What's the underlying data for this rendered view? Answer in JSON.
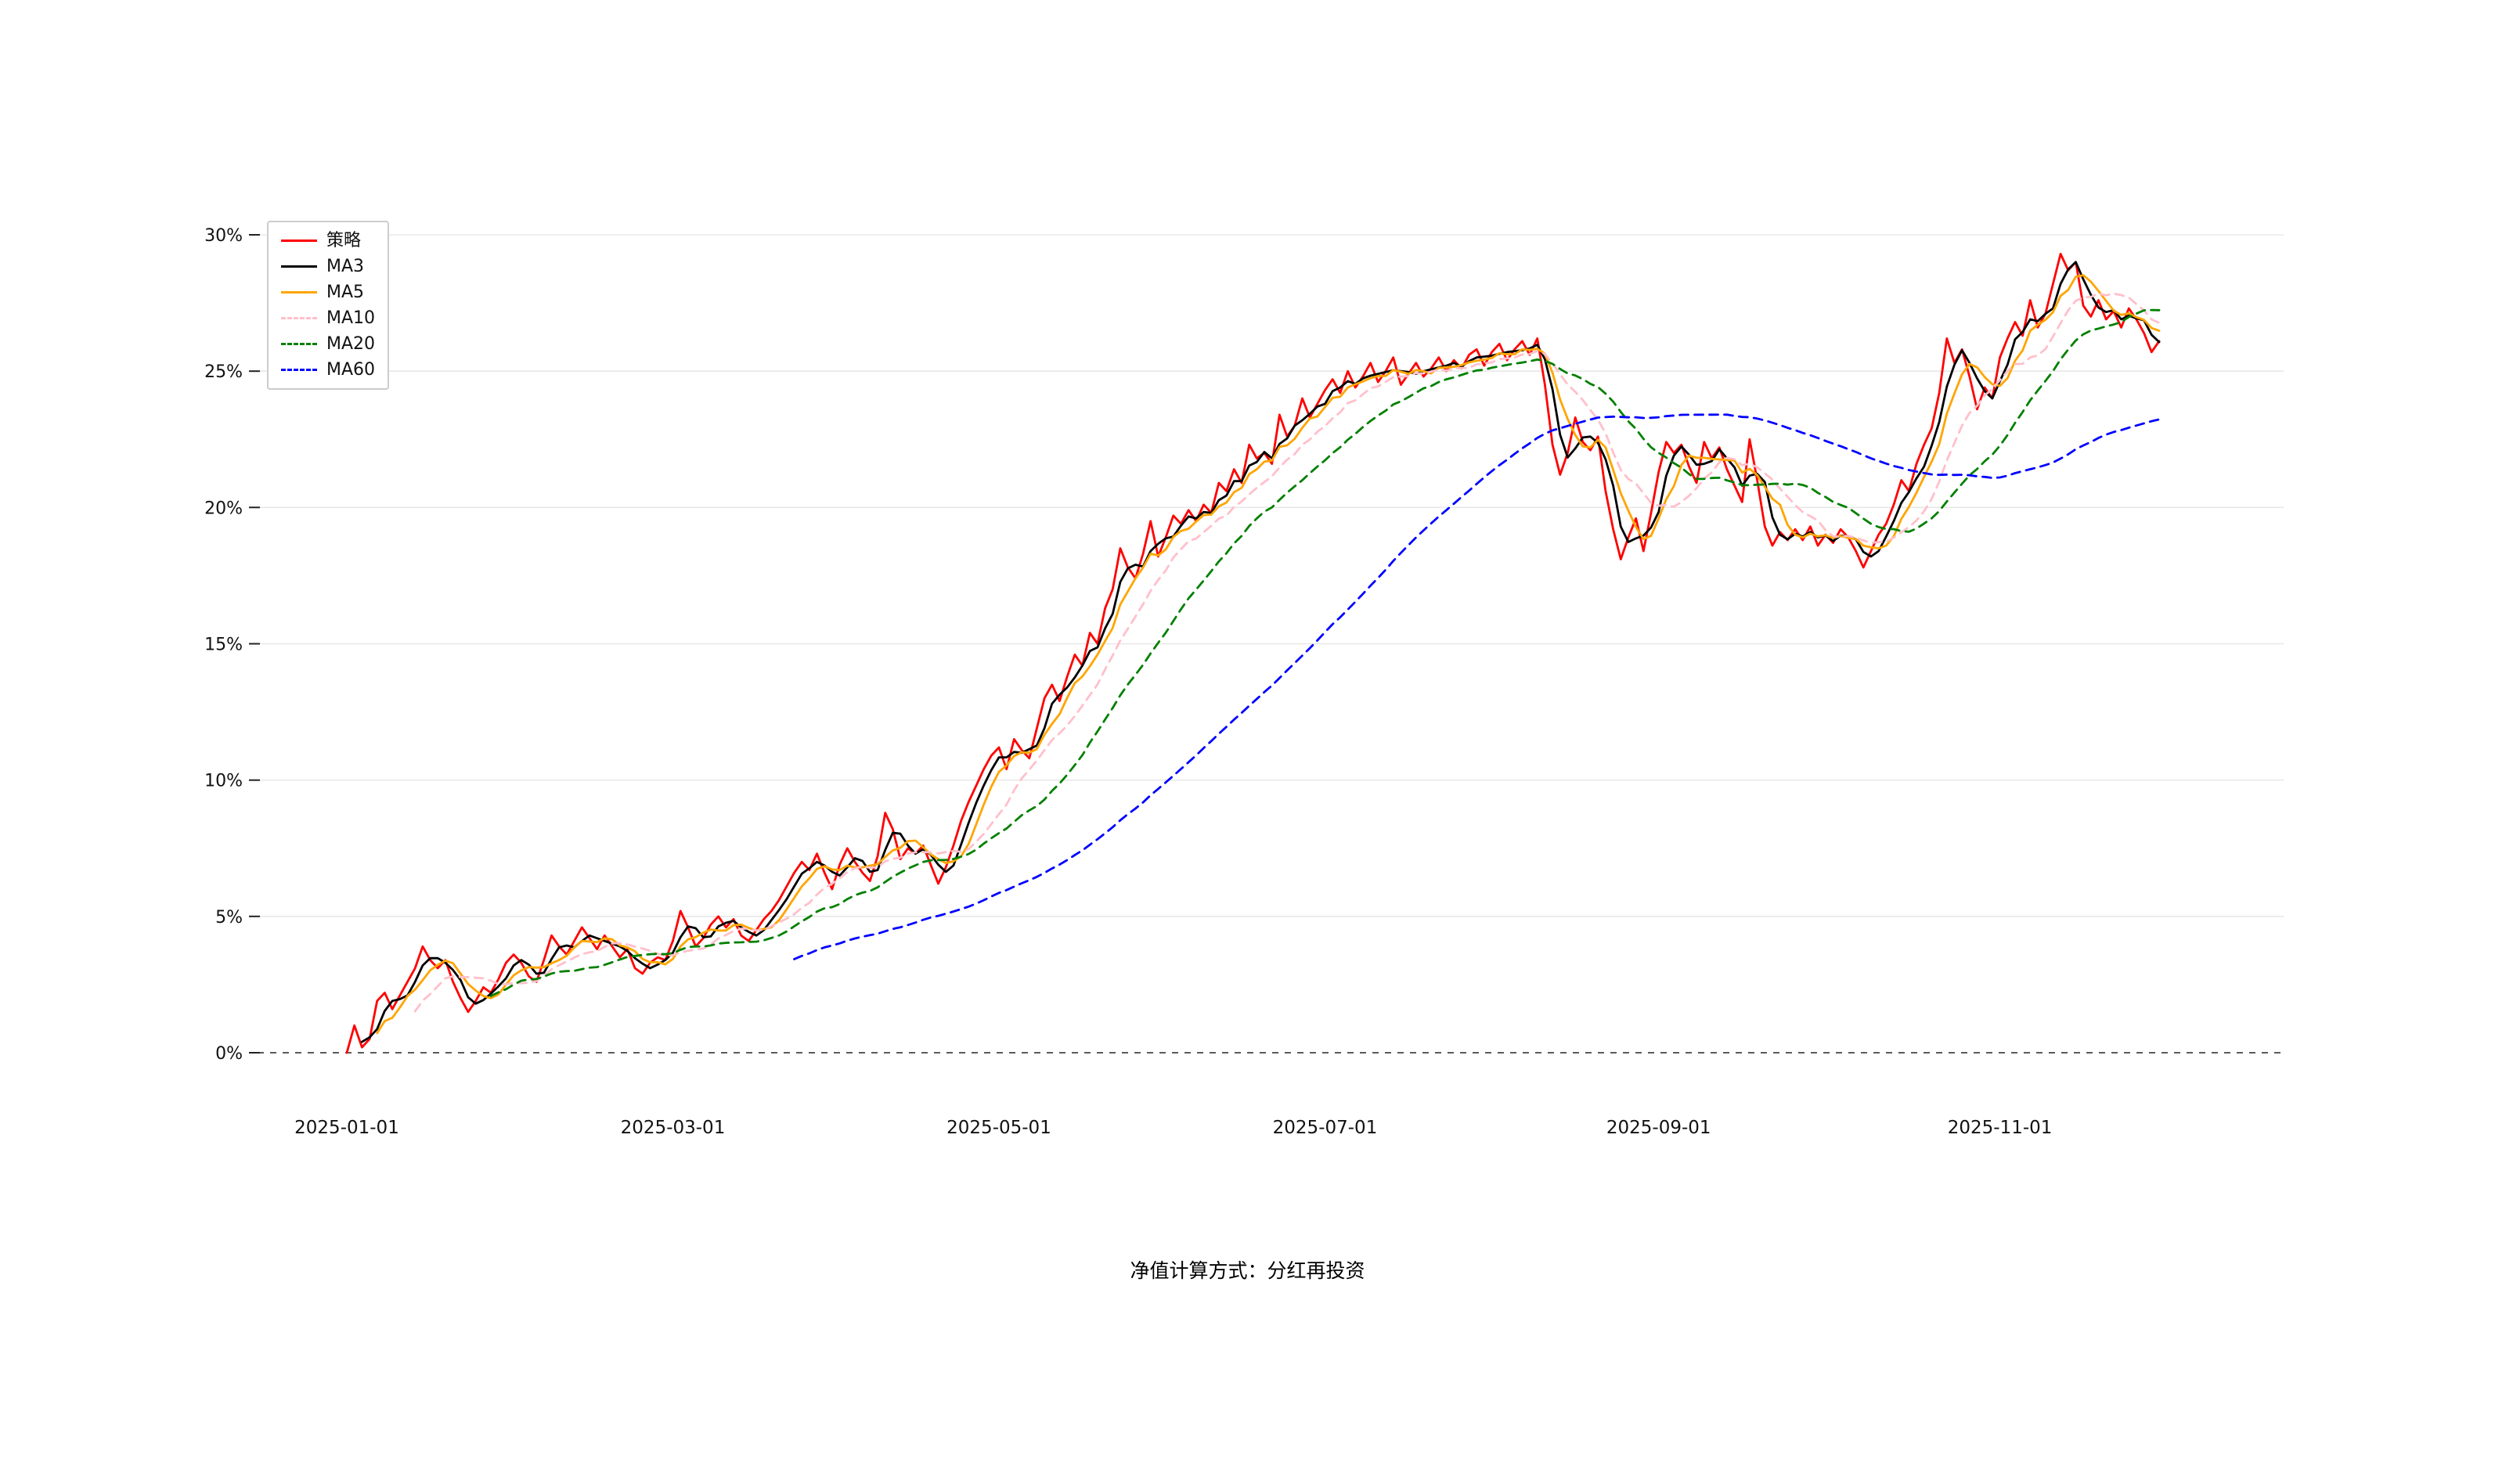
{
  "chart_data": {
    "type": "line",
    "title": "",
    "caption": "净值计算方式：分红再投资",
    "grid": "horizontal-light",
    "legend": {
      "position": "top-left",
      "entries": [
        "策略",
        "MA3",
        "MA5",
        "MA10",
        "MA20",
        "MA60"
      ]
    },
    "x_axis": {
      "label": "",
      "start_date": "2025-01-01",
      "frequency": "trading_days_weekends_skipped",
      "tick_labels": [
        "2025-01-01",
        "2025-03-01",
        "2025-05-01",
        "2025-07-01",
        "2025-09-01",
        "2025-11-01"
      ]
    },
    "y_axis": {
      "label": "",
      "unit": "%",
      "ticks": [
        0,
        5,
        10,
        15,
        20,
        25,
        30
      ],
      "tick_labels": [
        "0%",
        "5%",
        "10%",
        "15%",
        "20%",
        "25%",
        "30%"
      ],
      "range": [
        -1,
        31
      ],
      "zero_line": {
        "style": "dashed",
        "color": "#444444"
      }
    },
    "series": [
      {
        "key": "strategy",
        "name": "策略",
        "color": "#ff0000",
        "style": "solid",
        "source": "values"
      },
      {
        "key": "ma3",
        "name": "MA3",
        "color": "#000000",
        "style": "solid",
        "ma_window": 3
      },
      {
        "key": "ma5",
        "name": "MA5",
        "color": "#ffa500",
        "style": "solid",
        "ma_window": 5
      },
      {
        "key": "ma10",
        "name": "MA10",
        "color": "#ffc0cb",
        "style": "dashed",
        "ma_window": 10
      },
      {
        "key": "ma20",
        "name": "MA20",
        "color": "#008000",
        "style": "dashed",
        "ma_window": 20
      },
      {
        "key": "ma60",
        "name": "MA60",
        "color": "#0000ff",
        "style": "dashed",
        "ma_window": 60
      }
    ],
    "values": [
      0.0,
      1.0,
      0.2,
      0.5,
      1.9,
      2.2,
      1.6,
      2.1,
      2.6,
      3.1,
      3.9,
      3.4,
      3.1,
      3.4,
      2.6,
      2.0,
      1.5,
      1.9,
      2.4,
      2.2,
      2.7,
      3.3,
      3.6,
      3.3,
      2.8,
      2.6,
      3.4,
      4.3,
      3.9,
      3.6,
      4.1,
      4.6,
      4.2,
      3.8,
      4.3,
      3.9,
      3.5,
      3.8,
      3.1,
      2.9,
      3.3,
      3.5,
      3.4,
      4.1,
      5.2,
      4.6,
      3.9,
      4.2,
      4.7,
      5.0,
      4.6,
      4.9,
      4.3,
      4.1,
      4.5,
      4.9,
      5.2,
      5.6,
      6.1,
      6.6,
      7.0,
      6.7,
      7.3,
      6.6,
      6.0,
      6.9,
      7.5,
      7.0,
      6.6,
      6.3,
      7.2,
      8.8,
      8.2,
      7.1,
      7.5,
      7.3,
      7.6,
      6.9,
      6.2,
      6.8,
      7.6,
      8.5,
      9.2,
      9.8,
      10.4,
      10.9,
      11.2,
      10.4,
      11.5,
      11.1,
      10.8,
      11.9,
      13.0,
      13.5,
      12.9,
      13.8,
      14.6,
      14.2,
      15.4,
      15.0,
      16.3,
      17.0,
      18.5,
      17.8,
      17.4,
      18.3,
      19.5,
      18.2,
      18.9,
      19.7,
      19.4,
      19.9,
      19.5,
      20.1,
      19.8,
      20.9,
      20.6,
      21.4,
      20.9,
      22.3,
      21.8,
      22.0,
      21.6,
      23.4,
      22.6,
      23.0,
      24.0,
      23.3,
      23.8,
      24.3,
      24.7,
      24.2,
      25.0,
      24.4,
      24.8,
      25.3,
      24.6,
      25.0,
      25.5,
      24.5,
      24.9,
      25.3,
      24.8,
      25.1,
      25.5,
      25.0,
      25.4,
      25.1,
      25.6,
      25.8,
      25.2,
      25.7,
      26.0,
      25.4,
      25.8,
      26.1,
      25.6,
      26.2,
      24.5,
      22.3,
      21.2,
      22.0,
      23.3,
      22.4,
      22.1,
      22.6,
      20.6,
      19.2,
      18.1,
      18.9,
      19.6,
      18.4,
      19.8,
      21.3,
      22.4,
      22.0,
      22.3,
      21.5,
      20.9,
      22.4,
      21.8,
      22.2,
      21.4,
      20.8,
      20.2,
      22.5,
      21.0,
      19.3,
      18.6,
      19.1,
      18.8,
      19.2,
      18.8,
      19.3,
      18.6,
      19.0,
      18.7,
      19.2,
      18.9,
      18.4,
      17.8,
      18.4,
      19.0,
      19.4,
      20.1,
      21.0,
      20.6,
      21.6,
      22.3,
      22.9,
      24.2,
      26.2,
      25.3,
      25.8,
      24.8,
      23.6,
      24.4,
      24.0,
      25.5,
      26.2,
      26.8,
      26.3,
      27.6,
      26.6,
      27.1,
      28.2,
      29.3,
      28.7,
      29.0,
      27.4,
      27.0,
      27.6,
      26.9,
      27.2,
      26.6,
      27.3,
      26.9,
      26.4,
      25.7,
      26.1
    ]
  }
}
